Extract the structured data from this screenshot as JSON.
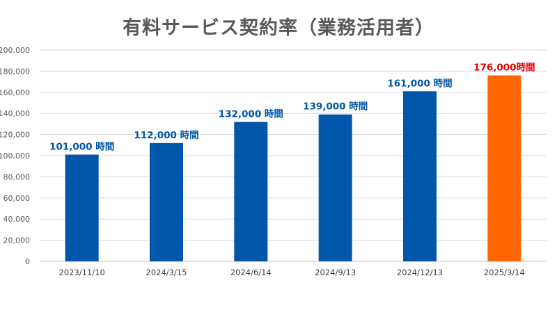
{
  "chart_data": {
    "type": "bar",
    "title": "有料サービス契約率（業務活用者）",
    "xlabel": "",
    "ylabel": "",
    "categories": [
      "2023/11/10",
      "2024/3/15",
      "2024/6/14",
      "2024/9/13",
      "2024/12/13",
      "2025/3/14"
    ],
    "values": [
      101000,
      112000,
      132000,
      139000,
      161000,
      176000
    ],
    "data_labels": [
      "101,000 時間",
      "112,000 時間",
      "132,000 時間",
      "139,000 時間",
      "161,000 時間",
      "176,000時間"
    ],
    "ylim": [
      0,
      200000
    ],
    "yticks": [
      0,
      20000,
      40000,
      60000,
      80000,
      100000,
      120000,
      140000,
      160000,
      180000,
      200000
    ],
    "ytick_labels": [
      "0",
      "20,000",
      "40,000",
      "60,000",
      "80,000",
      "100,000",
      "120,000",
      "140,000",
      "160,000",
      "180,000",
      "200,000"
    ],
    "grid": true,
    "legend": "none",
    "colors": {
      "bar": "#0056a8",
      "highlight_bar": "#ff6600",
      "label": "#0056a8",
      "highlight_label": "#e60000",
      "grid": "#d9d9d9",
      "axis": "#bfbfbf"
    },
    "highlight_index": 5
  }
}
